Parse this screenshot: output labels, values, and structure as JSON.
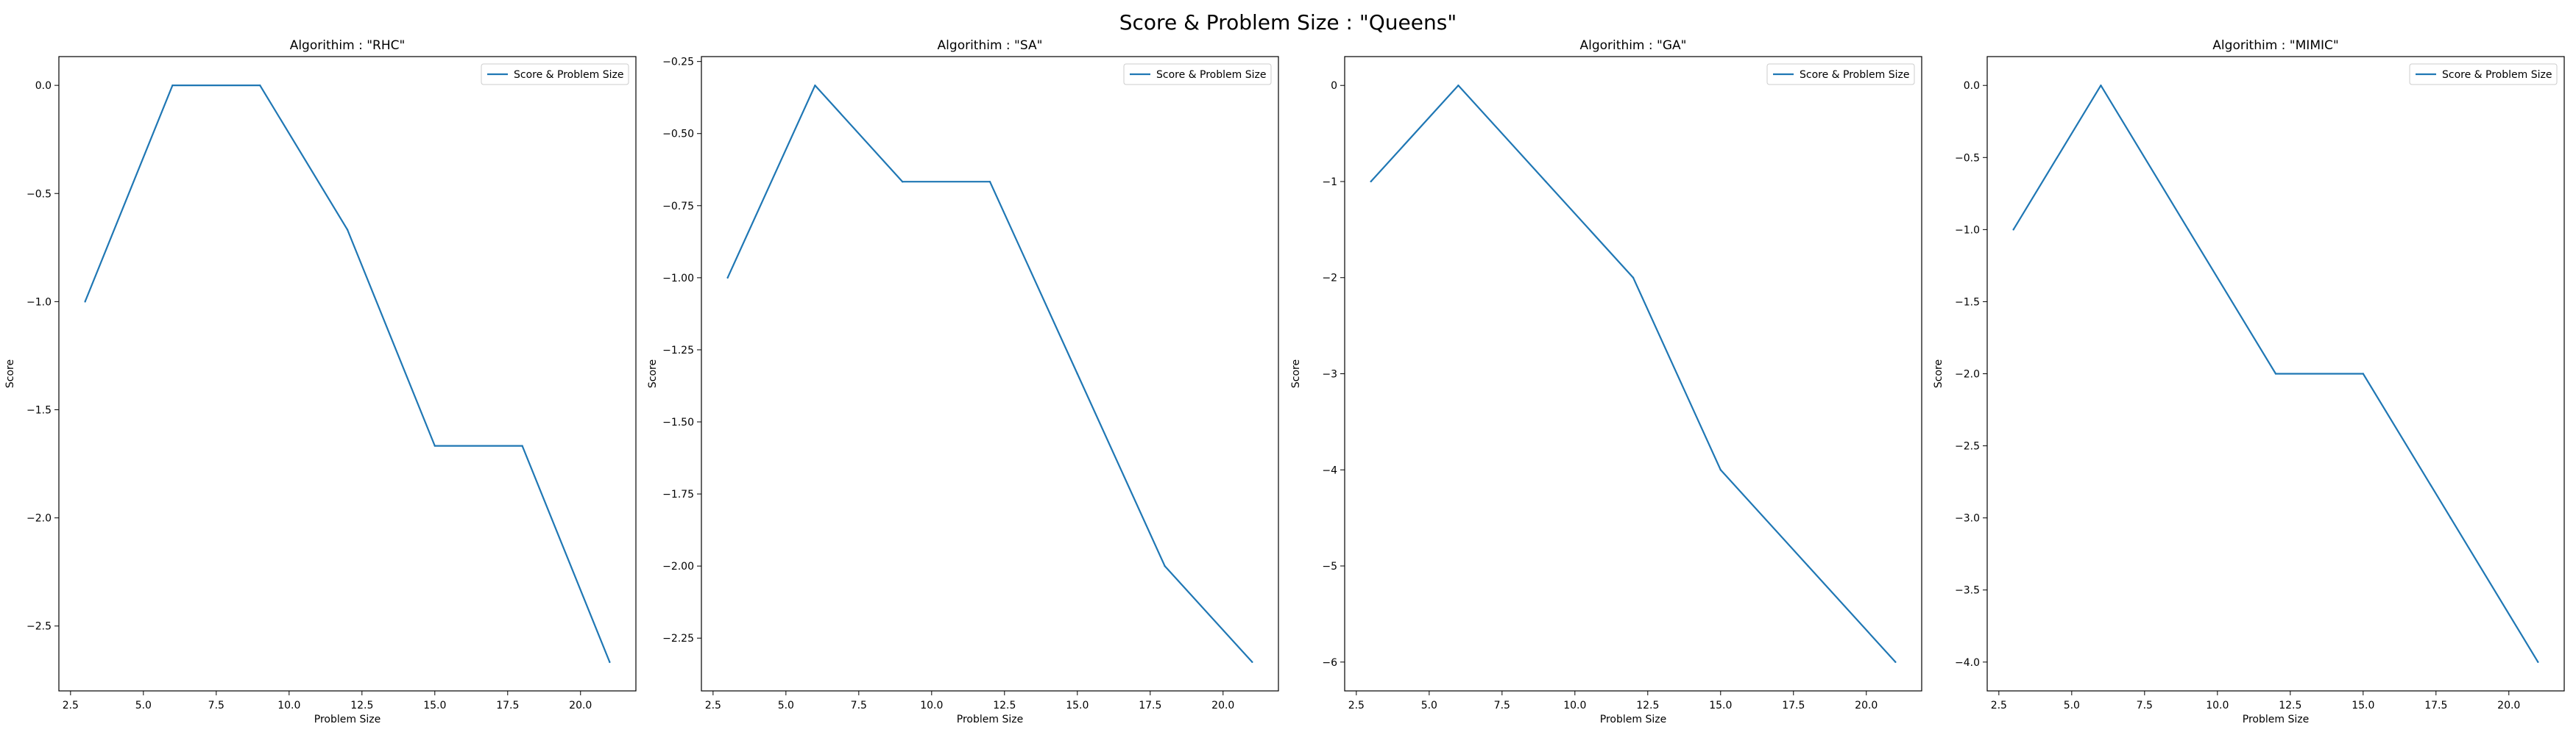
{
  "figure_title": "Score & Problem Size : \"Queens\"",
  "colors": {
    "line": "#1f77b4"
  },
  "chart_data": [
    {
      "type": "line",
      "title": "Algorithim : \"RHC\"",
      "xlabel": "Problem Size",
      "ylabel": "Score",
      "legend": "top-right",
      "x": [
        3,
        6,
        9,
        12,
        15,
        18,
        21
      ],
      "series": [
        {
          "name": "Score & Problem Size",
          "values": [
            -1.0,
            0.0,
            0.0,
            -0.667,
            -1.667,
            -1.667,
            -2.667
          ]
        }
      ],
      "xlim": [
        2.1,
        21.9
      ],
      "ylim": [
        -2.8,
        0.133
      ],
      "xticks": [
        2.5,
        5.0,
        7.5,
        10.0,
        12.5,
        15.0,
        17.5,
        20.0
      ],
      "xtick_labels": [
        "2.5",
        "5.0",
        "7.5",
        "10.0",
        "12.5",
        "15.0",
        "17.5",
        "20.0"
      ],
      "yticks": [
        0.0,
        -0.5,
        -1.0,
        -1.5,
        -2.0,
        -2.5
      ],
      "ytick_labels": [
        "0.0",
        "−0.5",
        "−1.0",
        "−1.5",
        "−2.0",
        "−2.5"
      ]
    },
    {
      "type": "line",
      "title": "Algorithim : \"SA\"",
      "xlabel": "Problem Size",
      "ylabel": "Score",
      "legend": "top-right",
      "x": [
        3,
        6,
        9,
        12,
        15,
        18,
        21
      ],
      "series": [
        {
          "name": "Score & Problem Size",
          "values": [
            -1.0,
            -0.333,
            -0.667,
            -0.667,
            -1.333,
            -2.0,
            -2.333
          ]
        }
      ],
      "xlim": [
        2.1,
        21.9
      ],
      "ylim": [
        -2.433,
        -0.233
      ],
      "xticks": [
        2.5,
        5.0,
        7.5,
        10.0,
        12.5,
        15.0,
        17.5,
        20.0
      ],
      "xtick_labels": [
        "2.5",
        "5.0",
        "7.5",
        "10.0",
        "12.5",
        "15.0",
        "17.5",
        "20.0"
      ],
      "yticks": [
        -0.25,
        -0.5,
        -0.75,
        -1.0,
        -1.25,
        -1.5,
        -1.75,
        -2.0,
        -2.25
      ],
      "ytick_labels": [
        "−0.25",
        "−0.50",
        "−0.75",
        "−1.00",
        "−1.25",
        "−1.50",
        "−1.75",
        "−2.00",
        "−2.25"
      ]
    },
    {
      "type": "line",
      "title": "Algorithim : \"GA\"",
      "xlabel": "Problem Size",
      "ylabel": "Score",
      "legend": "top-right",
      "x": [
        3,
        6,
        9,
        12,
        15,
        18,
        21
      ],
      "series": [
        {
          "name": "Score & Problem Size",
          "values": [
            -1.0,
            0.0,
            -1.0,
            -2.0,
            -4.0,
            -5.0,
            -6.0
          ]
        }
      ],
      "xlim": [
        2.1,
        21.9
      ],
      "ylim": [
        -6.3,
        0.3
      ],
      "xticks": [
        2.5,
        5.0,
        7.5,
        10.0,
        12.5,
        15.0,
        17.5,
        20.0
      ],
      "xtick_labels": [
        "2.5",
        "5.0",
        "7.5",
        "10.0",
        "12.5",
        "15.0",
        "17.5",
        "20.0"
      ],
      "yticks": [
        0,
        -1,
        -2,
        -3,
        -4,
        -5,
        -6
      ],
      "ytick_labels": [
        "0",
        "−1",
        "−2",
        "−3",
        "−4",
        "−5",
        "−6"
      ]
    },
    {
      "type": "line",
      "title": "Algorithim : \"MIMIC\"",
      "xlabel": "Problem Size",
      "ylabel": "Score",
      "legend": "top-right",
      "x": [
        3,
        6,
        9,
        12,
        15,
        18,
        21
      ],
      "series": [
        {
          "name": "Score & Problem Size",
          "values": [
            -1.0,
            0.0,
            -1.0,
            -2.0,
            -2.0,
            -3.0,
            -4.0
          ]
        }
      ],
      "xlim": [
        2.1,
        21.9
      ],
      "ylim": [
        -4.2,
        0.2
      ],
      "xticks": [
        2.5,
        5.0,
        7.5,
        10.0,
        12.5,
        15.0,
        17.5,
        20.0
      ],
      "xtick_labels": [
        "2.5",
        "5.0",
        "7.5",
        "10.0",
        "12.5",
        "15.0",
        "17.5",
        "20.0"
      ],
      "yticks": [
        0.0,
        -0.5,
        -1.0,
        -1.5,
        -2.0,
        -2.5,
        -3.0,
        -3.5,
        -4.0
      ],
      "ytick_labels": [
        "0.0",
        "−0.5",
        "−1.0",
        "−1.5",
        "−2.0",
        "−2.5",
        "−3.0",
        "−3.5",
        "−4.0"
      ]
    }
  ]
}
